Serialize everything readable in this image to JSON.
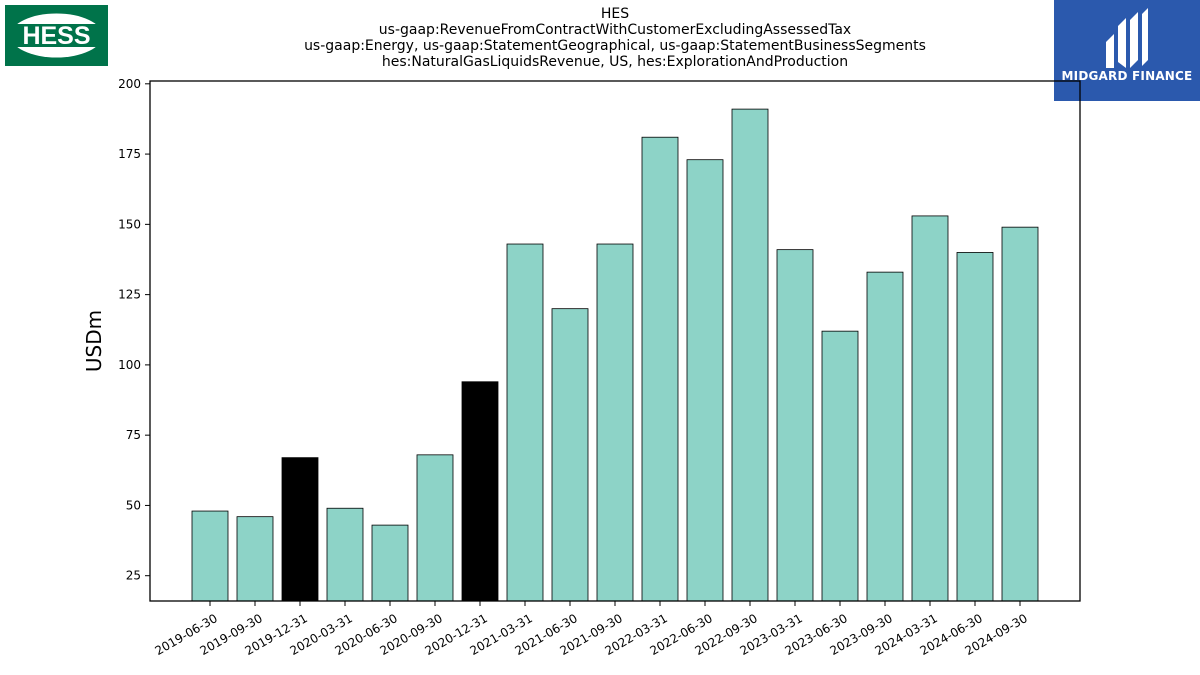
{
  "header": {
    "lines": [
      "HES",
      "us-gaap:RevenueFromContractWithCustomerExcludingAssessedTax",
      "us-gaap:Energy, us-gaap:StatementGeographical, us-gaap:StatementBusinessSegments",
      "hes:NaturalGasLiquidsRevenue, US, hes:ExplorationAndProduction"
    ]
  },
  "logos": {
    "hess_text": "HESS",
    "midgard_text": "MIDGARD FINANCE"
  },
  "chart_data": {
    "type": "bar",
    "categories": [
      "2019-06-30",
      "2019-09-30",
      "2019-12-31",
      "2020-03-31",
      "2020-06-30",
      "2020-09-30",
      "2020-12-31",
      "2021-03-31",
      "2021-06-30",
      "2021-09-30",
      "2022-03-31",
      "2022-06-30",
      "2022-09-30",
      "2023-03-31",
      "2023-06-30",
      "2023-09-30",
      "2024-03-31",
      "2024-06-30",
      "2024-09-30"
    ],
    "values": [
      48,
      46,
      67,
      49,
      43,
      68,
      94,
      143,
      120,
      143,
      181,
      173,
      191,
      141,
      112,
      133,
      153,
      140,
      149
    ],
    "highlighted": [
      false,
      false,
      true,
      false,
      false,
      false,
      true,
      false,
      false,
      false,
      false,
      false,
      false,
      false,
      false,
      false,
      false,
      false,
      false
    ],
    "ylabel": "USDm",
    "ylim": [
      16,
      201
    ],
    "yticks": [
      25,
      50,
      75,
      100,
      125,
      150,
      175,
      200
    ],
    "grid": false,
    "colors": {
      "bar": "#8dd3c7",
      "highlight": "#000000",
      "edge": "#000000"
    }
  }
}
